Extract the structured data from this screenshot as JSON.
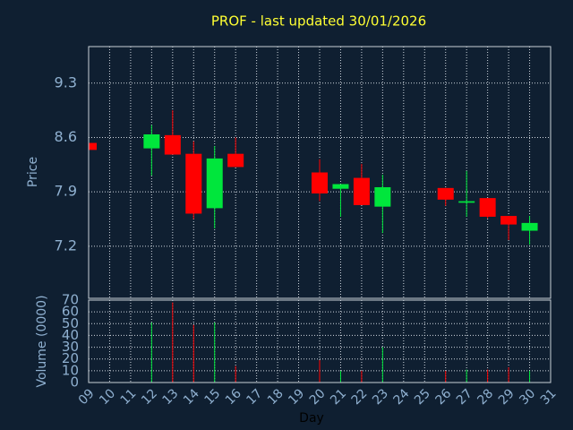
{
  "chart_data": {
    "type": "candlestick",
    "title": "PROF - last updated 30/01/2026",
    "y_label": "Price",
    "y2_label": "Volume (0000)",
    "x_label": "Day",
    "x": [
      9,
      12,
      13,
      14,
      15,
      16,
      20,
      21,
      22,
      23,
      26,
      27,
      28,
      29,
      30
    ],
    "open": [
      8.53,
      8.46,
      8.63,
      8.39,
      7.69,
      8.39,
      8.15,
      7.94,
      8.08,
      7.71,
      7.95,
      7.76,
      7.82,
      7.59,
      7.4
    ],
    "high": [
      8.53,
      8.76,
      8.95,
      8.55,
      8.49,
      8.6,
      8.32,
      8.0,
      8.26,
      8.12,
      7.95,
      8.17,
      7.82,
      7.59,
      7.59
    ],
    "low": [
      8.44,
      8.11,
      8.38,
      7.55,
      7.43,
      8.22,
      7.78,
      7.58,
      7.73,
      7.37,
      7.72,
      7.58,
      7.56,
      7.28,
      7.22
    ],
    "close": [
      8.44,
      8.64,
      8.38,
      7.62,
      8.33,
      8.22,
      7.88,
      8.0,
      7.73,
      7.96,
      7.8,
      7.78,
      7.58,
      7.48,
      7.5
    ],
    "volume": [
      0,
      51,
      68,
      49,
      51,
      14,
      19,
      10,
      10,
      30,
      10,
      11,
      11,
      13,
      10
    ],
    "up_color": "#00e63c",
    "down_color": "#ff0000",
    "xlim": [
      9,
      31
    ],
    "xticks": [
      {
        "value": 9,
        "label": "09"
      },
      10,
      11,
      12,
      13,
      14,
      15,
      16,
      17,
      18,
      19,
      20,
      21,
      22,
      23,
      24,
      25,
      26,
      27,
      28,
      29,
      30,
      31
    ],
    "ylim": [
      6.53,
      9.77
    ],
    "yticks": [
      7.2,
      7.9,
      8.6,
      9.3
    ],
    "y2lim": [
      0,
      70
    ],
    "y2ticks": [
      0,
      10,
      20,
      30,
      40,
      50,
      60,
      70
    ],
    "grid": true
  }
}
